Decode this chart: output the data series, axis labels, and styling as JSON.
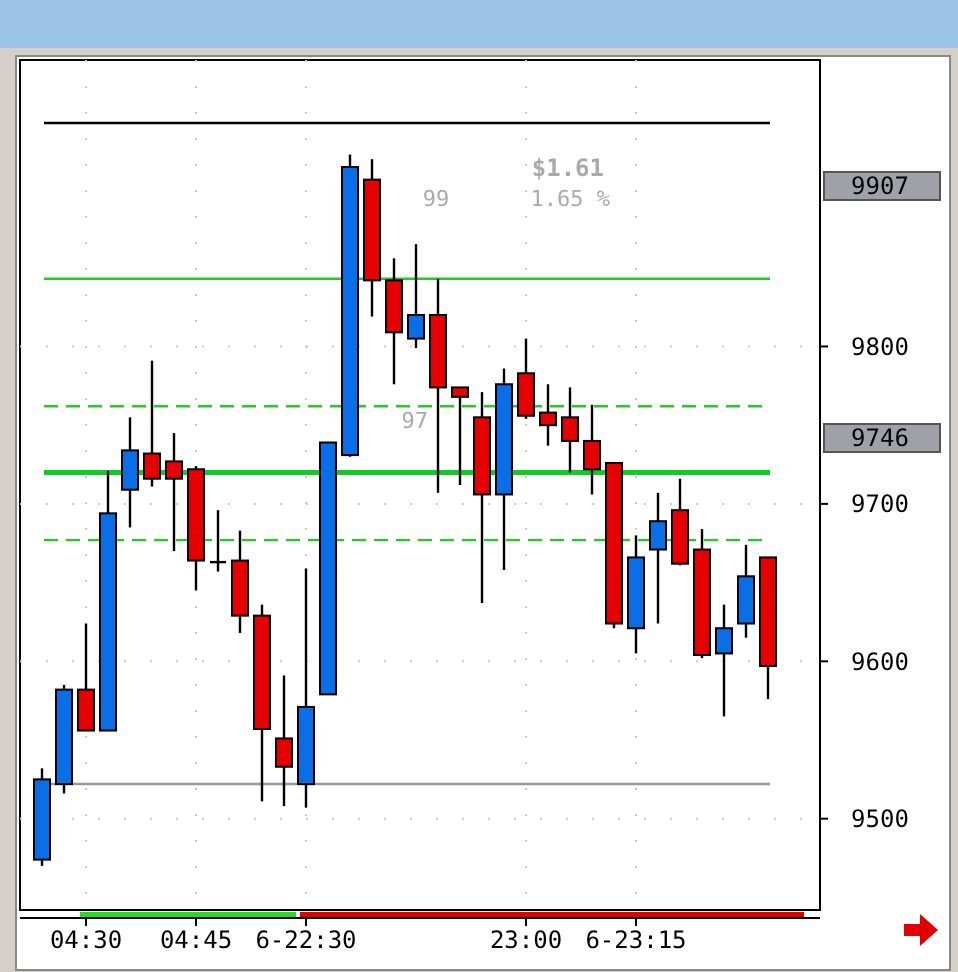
{
  "chart_data": {
    "type": "candlestick",
    "categories": [
      null,
      null,
      "04:30",
      null,
      null,
      null,
      null,
      "04:45",
      null,
      null,
      null,
      null,
      "6-22:30",
      null,
      null,
      null,
      null,
      null,
      null,
      null,
      null,
      null,
      "23:00",
      null,
      null,
      null,
      null,
      "6-23:15",
      null,
      null,
      null,
      null,
      null,
      null
    ],
    "ohlc": [
      [
        9474,
        9532,
        9470,
        9525
      ],
      [
        9522,
        9585,
        9516,
        9582
      ],
      [
        9582,
        9624,
        9556,
        9556
      ],
      [
        9556,
        9721,
        9556,
        9694
      ],
      [
        9709,
        9755,
        9685,
        9734
      ],
      [
        9732,
        9791,
        9711,
        9716
      ],
      [
        9727,
        9745,
        9670,
        9716
      ],
      [
        9722,
        9724,
        9645,
        9664
      ],
      [
        9663,
        9696,
        9657,
        9663
      ],
      [
        9664,
        9683,
        9618,
        9629
      ],
      [
        9629,
        9636,
        9511,
        9557
      ],
      [
        9551,
        9591,
        9508,
        9533
      ],
      [
        9522,
        9659,
        9507,
        9571
      ],
      [
        9579,
        9739,
        9579,
        9739
      ],
      [
        9731,
        9922,
        9730,
        9914
      ],
      [
        9906,
        9919,
        9819,
        9842
      ],
      [
        9842,
        9856,
        9776,
        9809
      ],
      [
        9805,
        9865,
        9799,
        9820
      ],
      [
        9820,
        9843,
        9707,
        9774
      ],
      [
        9774,
        9774,
        9712,
        9768
      ],
      [
        9755,
        9771,
        9637,
        9706
      ],
      [
        9706,
        9786,
        9658,
        9776
      ],
      [
        9783,
        9805,
        9754,
        9756
      ],
      [
        9758,
        9776,
        9737,
        9750
      ],
      [
        9755,
        9774,
        9720,
        9740
      ],
      [
        9740,
        9763,
        9706,
        9722
      ],
      [
        9726,
        9726,
        9621,
        9624
      ],
      [
        9621,
        9680,
        9605,
        9666
      ],
      [
        9671,
        9707,
        9624,
        9689
      ],
      [
        9696,
        9716,
        9661,
        9662
      ],
      [
        9671,
        9684,
        9602,
        9604
      ],
      [
        9605,
        9636,
        9565,
        9621
      ],
      [
        9624,
        9674,
        9615,
        9654
      ],
      [
        9666,
        9666,
        9576,
        9597
      ]
    ],
    "colors": [
      "#0a6ee6",
      "#0a6ee6",
      "#e60000",
      "#0a6ee6",
      "#0a6ee6",
      "#e60000",
      "#e60000",
      "#e60000",
      "#000000",
      "#e60000",
      "#e60000",
      "#e60000",
      "#0a6ee6",
      "#0a6ee6",
      "#0a6ee6",
      "#e60000",
      "#e60000",
      "#0a6ee6",
      "#e60000",
      "#e60000",
      "#e60000",
      "#0a6ee6",
      "#e60000",
      "#e60000",
      "#e60000",
      "#e60000",
      "#e60000",
      "#0a6ee6",
      "#0a6ee6",
      "#e60000",
      "#e60000",
      "#0a6ee6",
      "#0a6ee6",
      "#e60000"
    ],
    "ylim": [
      9442,
      9982
    ],
    "yticks": [
      9500,
      9600,
      9700,
      9800
    ],
    "grid": true,
    "ref_lines": [
      {
        "axis": "y",
        "value": 9942,
        "color": "#000000",
        "line_style": "solid"
      },
      {
        "axis": "y",
        "value": 9843,
        "color": "#22cc22",
        "line_style": "solid"
      },
      {
        "axis": "y",
        "value": 9762,
        "color": "#22cc22",
        "line_style": "dashed"
      },
      {
        "axis": "y",
        "value": 9720,
        "color": "#11cc22",
        "line_style": "solid"
      },
      {
        "axis": "y",
        "value": 9677,
        "color": "#22cc22",
        "line_style": "dashed"
      },
      {
        "axis": "y",
        "value": 9522,
        "color": "#999999",
        "line_style": "solid"
      }
    ],
    "annotations": [
      "$1.61",
      "1.65 %",
      "99",
      "97",
      "9907",
      "9746"
    ]
  }
}
